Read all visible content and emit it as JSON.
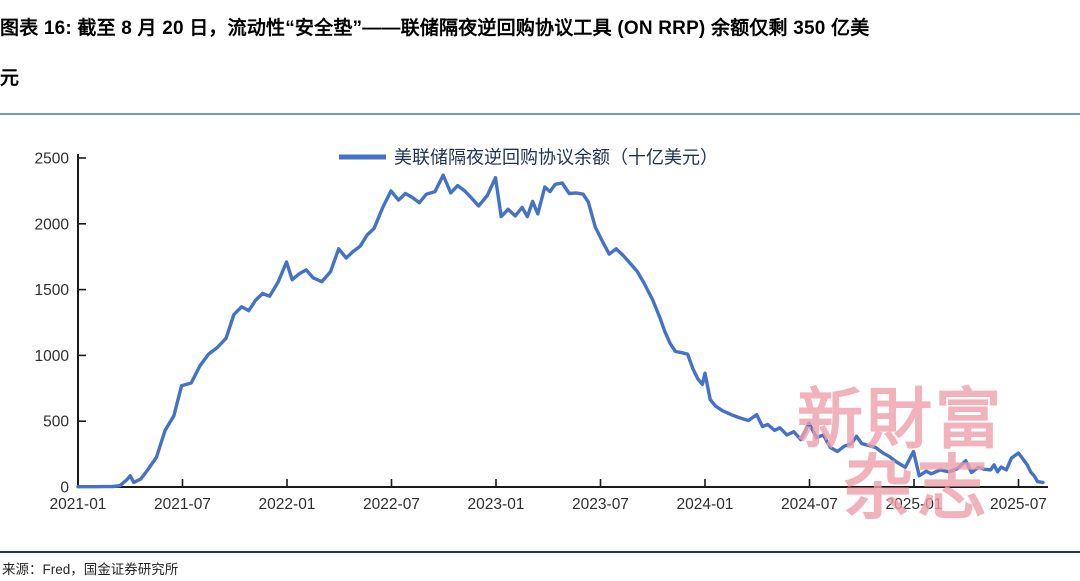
{
  "figure": {
    "title_line1": "图表 16: 截至 8 月 20 日，流动性“安全垫”——联储隔夜逆回购协议工具 (ON RRP) 余额仅剩 350 亿美",
    "title_line2": "元",
    "source": "来源：Fred，国金证券研究所",
    "watermark_line1": "新財富",
    "watermark_line2": "杂志"
  },
  "colors": {
    "line": "#4472c4",
    "axis": "#1a1a1a",
    "title_rule": "#6f9fb5",
    "footer_rule": "#203864",
    "watermark": "#ef9fac",
    "legend_text": "#1f3252"
  },
  "chart_data": {
    "type": "line",
    "title": "",
    "xlabel": "",
    "ylabel": "",
    "legend": [
      "美联储隔夜逆回购协议余额（十亿美元）"
    ],
    "legend_position": "top-center",
    "grid": false,
    "ylim": [
      0,
      2500
    ],
    "yticks": [
      0,
      500,
      1000,
      1500,
      2000,
      2500
    ],
    "xticks": [
      "2021-01",
      "2021-07",
      "2022-01",
      "2022-07",
      "2023-01",
      "2023-07",
      "2024-01",
      "2024-07",
      "2025-01",
      "2025-07"
    ],
    "x_unit": "months since 2021-01 (0 = 2021-01)",
    "y_unit": "billions of USD",
    "series": [
      {
        "name": "美联储隔夜逆回购协议余额（十亿美元）",
        "points": [
          [
            0,
            2
          ],
          [
            0.5,
            2
          ],
          [
            1,
            2
          ],
          [
            1.5,
            3
          ],
          [
            2,
            4
          ],
          [
            2.4,
            10
          ],
          [
            2.8,
            55
          ],
          [
            3,
            85
          ],
          [
            3.2,
            35
          ],
          [
            3.6,
            60
          ],
          [
            4,
            130
          ],
          [
            4.5,
            225
          ],
          [
            5,
            430
          ],
          [
            5.5,
            540
          ],
          [
            5.95,
            770
          ],
          [
            6.5,
            790
          ],
          [
            7,
            920
          ],
          [
            7.5,
            1010
          ],
          [
            8,
            1060
          ],
          [
            8.5,
            1130
          ],
          [
            8.95,
            1310
          ],
          [
            9.4,
            1370
          ],
          [
            9.8,
            1340
          ],
          [
            10.2,
            1420
          ],
          [
            10.6,
            1470
          ],
          [
            11,
            1450
          ],
          [
            11.5,
            1560
          ],
          [
            11.97,
            1710
          ],
          [
            12.3,
            1575
          ],
          [
            12.7,
            1620
          ],
          [
            13.1,
            1650
          ],
          [
            13.5,
            1590
          ],
          [
            14,
            1560
          ],
          [
            14.5,
            1635
          ],
          [
            14.97,
            1810
          ],
          [
            15.4,
            1740
          ],
          [
            15.8,
            1790
          ],
          [
            16.2,
            1830
          ],
          [
            16.6,
            1915
          ],
          [
            17,
            1965
          ],
          [
            17.5,
            2125
          ],
          [
            17.97,
            2250
          ],
          [
            18.4,
            2180
          ],
          [
            18.8,
            2230
          ],
          [
            19.2,
            2200
          ],
          [
            19.6,
            2160
          ],
          [
            20,
            2225
          ],
          [
            20.5,
            2245
          ],
          [
            20.97,
            2370
          ],
          [
            21.4,
            2235
          ],
          [
            21.8,
            2290
          ],
          [
            22.2,
            2250
          ],
          [
            22.6,
            2195
          ],
          [
            23,
            2135
          ],
          [
            23.5,
            2215
          ],
          [
            23.97,
            2350
          ],
          [
            24.3,
            2055
          ],
          [
            24.7,
            2110
          ],
          [
            25.1,
            2060
          ],
          [
            25.5,
            2125
          ],
          [
            25.8,
            2055
          ],
          [
            26.1,
            2170
          ],
          [
            26.4,
            2075
          ],
          [
            26.8,
            2280
          ],
          [
            27.1,
            2245
          ],
          [
            27.4,
            2300
          ],
          [
            27.8,
            2310
          ],
          [
            28.2,
            2230
          ],
          [
            28.6,
            2235
          ],
          [
            29,
            2225
          ],
          [
            29.3,
            2165
          ],
          [
            29.7,
            1975
          ],
          [
            30.1,
            1870
          ],
          [
            30.5,
            1770
          ],
          [
            30.9,
            1810
          ],
          [
            31.3,
            1760
          ],
          [
            31.7,
            1700
          ],
          [
            32.1,
            1640
          ],
          [
            32.5,
            1550
          ],
          [
            33,
            1420
          ],
          [
            33.4,
            1290
          ],
          [
            33.7,
            1180
          ],
          [
            34,
            1090
          ],
          [
            34.3,
            1030
          ],
          [
            34.7,
            1020
          ],
          [
            35,
            1010
          ],
          [
            35.3,
            900
          ],
          [
            35.6,
            820
          ],
          [
            35.85,
            780
          ],
          [
            36,
            865
          ],
          [
            36.3,
            665
          ],
          [
            36.6,
            615
          ],
          [
            37,
            580
          ],
          [
            37.5,
            550
          ],
          [
            38,
            525
          ],
          [
            38.5,
            505
          ],
          [
            38.97,
            550
          ],
          [
            39.3,
            460
          ],
          [
            39.6,
            475
          ],
          [
            40,
            430
          ],
          [
            40.3,
            450
          ],
          [
            40.7,
            395
          ],
          [
            41.1,
            420
          ],
          [
            41.5,
            360
          ],
          [
            41.97,
            485
          ],
          [
            42.4,
            375
          ],
          [
            42.8,
            395
          ],
          [
            43.2,
            300
          ],
          [
            43.6,
            270
          ],
          [
            44,
            310
          ],
          [
            44.4,
            330
          ],
          [
            44.7,
            385
          ],
          [
            45,
            330
          ],
          [
            45.4,
            315
          ],
          [
            45.8,
            300
          ],
          [
            46.2,
            260
          ],
          [
            46.6,
            230
          ],
          [
            47,
            190
          ],
          [
            47.5,
            150
          ],
          [
            47.97,
            270
          ],
          [
            48.3,
            85
          ],
          [
            48.7,
            120
          ],
          [
            49,
            100
          ],
          [
            49.5,
            130
          ],
          [
            50,
            115
          ],
          [
            50.5,
            140
          ],
          [
            50.97,
            200
          ],
          [
            51.3,
            110
          ],
          [
            51.7,
            150
          ],
          [
            52,
            135
          ],
          [
            52.4,
            130
          ],
          [
            52.6,
            168
          ],
          [
            52.8,
            115
          ],
          [
            53,
            152
          ],
          [
            53.3,
            130
          ],
          [
            53.6,
            220
          ],
          [
            54,
            258
          ],
          [
            54.3,
            205
          ],
          [
            54.5,
            168
          ],
          [
            54.7,
            114
          ],
          [
            54.9,
            84
          ],
          [
            55.1,
            40
          ],
          [
            55.4,
            35
          ]
        ]
      }
    ]
  }
}
